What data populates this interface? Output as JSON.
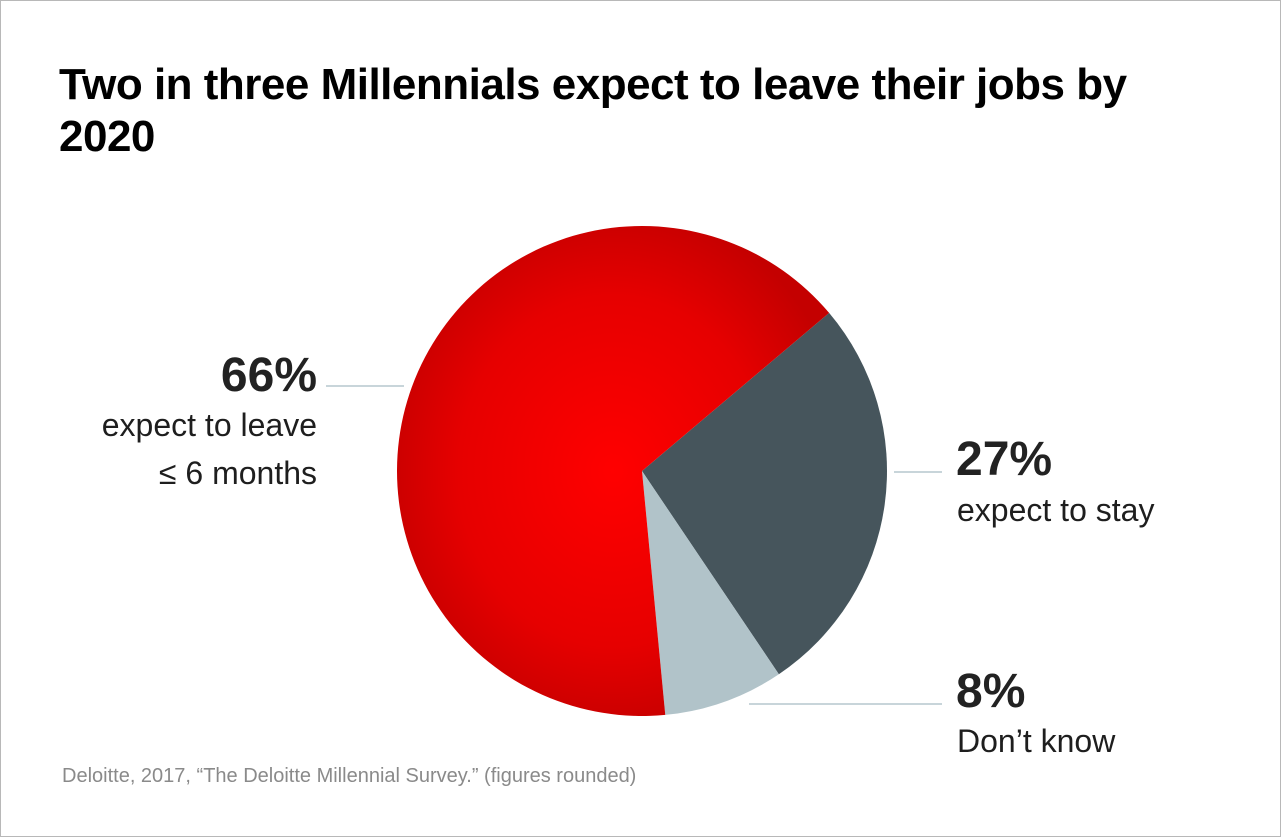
{
  "title": "Two in three Millennials expect to leave their jobs by 2020",
  "source": "Deloitte, 2017, “The Deloitte Millennial Survey.” (figures rounded)",
  "colors": {
    "leave": "#e00000",
    "stay": "#46555c",
    "dont_know": "#b1c3c9",
    "leader_line": "#b6c7cd"
  },
  "chart_data": {
    "type": "pie",
    "title": "Two in three Millennials expect to leave their jobs by 2020",
    "slices": [
      {
        "label_pct": "66%",
        "label_lines": [
          "expect to leave",
          "≤ 6 months"
        ],
        "value": 66,
        "color": "#e00000"
      },
      {
        "label_pct": "27%",
        "label_lines": [
          "expect to stay"
        ],
        "value": 27,
        "color": "#46555c"
      },
      {
        "label_pct": "8%",
        "label_lines": [
          "Don’t know"
        ],
        "value": 8,
        "color": "#b1c3c9"
      }
    ]
  }
}
